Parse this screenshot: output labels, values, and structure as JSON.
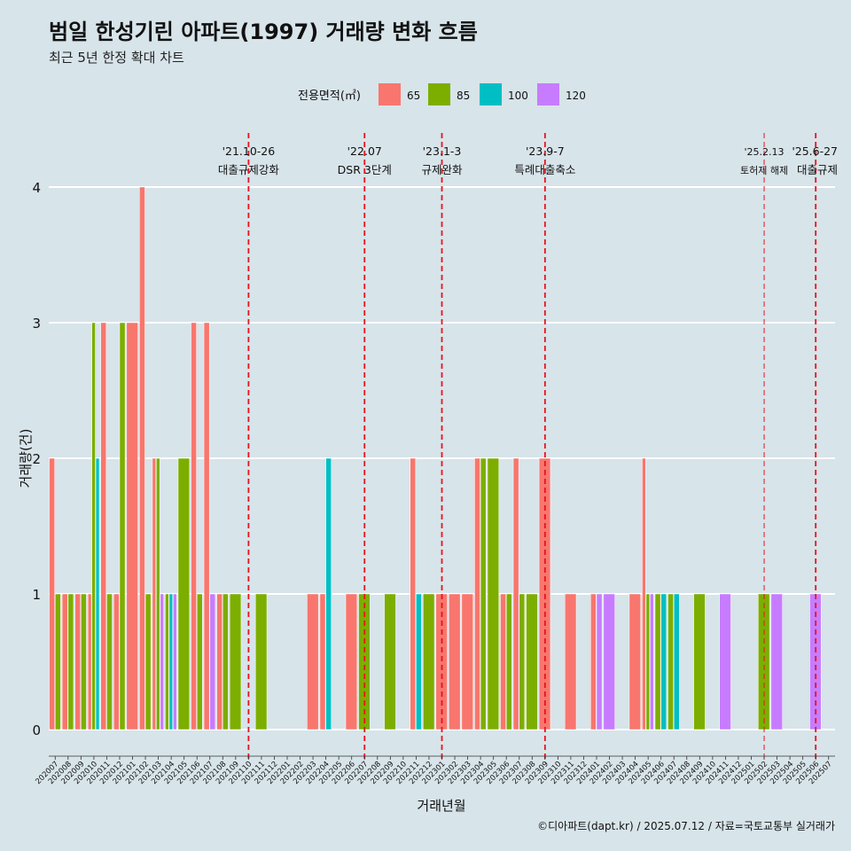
{
  "chart_data": {
    "type": "bar",
    "title": "범일 한성기린 아파트(1997) 거래량 변화 흐름",
    "subtitle": "최근 5년 한정 확대 차트",
    "xlabel": "거래년월",
    "ylabel": "거래량(건)",
    "ylim": [
      0,
      4
    ],
    "y_ticks": [
      0,
      1,
      2,
      3,
      4
    ],
    "grid": true,
    "legend_title": "전용면적(㎡)",
    "legend_position": "top",
    "caption": "©디아파트(dapt.kr) / 2025.07.12 / 자료=국토교통부 실거래가",
    "categories": [
      "202007",
      "202008",
      "202009",
      "202010",
      "202011",
      "202012",
      "202101",
      "202102",
      "202103",
      "202104",
      "202105",
      "202106",
      "202107",
      "202108",
      "202109",
      "202110",
      "202111",
      "202112",
      "202201",
      "202202",
      "202203",
      "202204",
      "202205",
      "202206",
      "202207",
      "202208",
      "202209",
      "202210",
      "202211",
      "202212",
      "202301",
      "202302",
      "202303",
      "202304",
      "202305",
      "202306",
      "202307",
      "202308",
      "202309",
      "202310",
      "202311",
      "202312",
      "202401",
      "202402",
      "202403",
      "202404",
      "202405",
      "202406",
      "202407",
      "202408",
      "202409",
      "202410",
      "202411",
      "202412",
      "202501",
      "202502",
      "202503",
      "202504",
      "202505",
      "202506",
      "202507"
    ],
    "series": [
      {
        "name": "65",
        "color": "#f8766d",
        "values": [
          2,
          1,
          1,
          1,
          3,
          1,
          3,
          4,
          2,
          0,
          0,
          3,
          3,
          1,
          0,
          0,
          0,
          0,
          0,
          0,
          1,
          1,
          0,
          1,
          0,
          0,
          0,
          0,
          2,
          0,
          1,
          1,
          1,
          2,
          0,
          1,
          2,
          0,
          2,
          0,
          1,
          0,
          1,
          0,
          0,
          1,
          2,
          0,
          0,
          0,
          0,
          0,
          0,
          0,
          0,
          0,
          0,
          0,
          0,
          0,
          0
        ]
      },
      {
        "name": "85",
        "color": "#7cae00",
        "values": [
          1,
          1,
          1,
          3,
          1,
          3,
          0,
          1,
          2,
          1,
          2,
          1,
          0,
          1,
          1,
          0,
          1,
          0,
          0,
          0,
          0,
          0,
          0,
          0,
          1,
          0,
          1,
          0,
          0,
          1,
          0,
          0,
          0,
          2,
          2,
          1,
          1,
          1,
          0,
          0,
          0,
          0,
          0,
          0,
          0,
          0,
          1,
          1,
          1,
          0,
          1,
          0,
          0,
          0,
          0,
          1,
          0,
          0,
          0,
          0,
          0
        ]
      },
      {
        "name": "100",
        "color": "#00bfc4",
        "values": [
          0,
          0,
          0,
          2,
          0,
          0,
          0,
          0,
          0,
          1,
          0,
          0,
          0,
          0,
          0,
          0,
          0,
          0,
          0,
          0,
          0,
          2,
          0,
          0,
          0,
          0,
          0,
          0,
          1,
          0,
          0,
          0,
          0,
          0,
          0,
          0,
          0,
          0,
          0,
          0,
          0,
          0,
          0,
          0,
          0,
          0,
          0,
          1,
          1,
          0,
          0,
          0,
          0,
          0,
          0,
          0,
          0,
          0,
          0,
          0,
          0
        ]
      },
      {
        "name": "120",
        "color": "#c77cff",
        "values": [
          0,
          0,
          0,
          0,
          0,
          0,
          0,
          0,
          1,
          1,
          0,
          0,
          1,
          0,
          0,
          0,
          0,
          0,
          0,
          0,
          0,
          0,
          0,
          0,
          0,
          0,
          0,
          0,
          0,
          0,
          0,
          0,
          0,
          0,
          0,
          0,
          0,
          0,
          0,
          0,
          0,
          0,
          1,
          1,
          0,
          0,
          1,
          0,
          0,
          0,
          0,
          0,
          1,
          0,
          0,
          0,
          1,
          0,
          0,
          1,
          0
        ]
      }
    ],
    "annotations": [
      {
        "x": "202110",
        "date": "'21.10-26",
        "label": "대출규제강화"
      },
      {
        "x": "202207",
        "date": "'22.07",
        "label": "DSR 3단계"
      },
      {
        "x": "202301",
        "date": "'23.1-3",
        "label": "규제완화"
      },
      {
        "x": "202309",
        "date": "'23.9-7",
        "label": "특례대출축소"
      },
      {
        "x": "202502",
        "date": "'25.2.13",
        "label": "토허제 해제"
      },
      {
        "x": "202506",
        "date": "'25.6-27",
        "label": "대출규제"
      }
    ]
  }
}
